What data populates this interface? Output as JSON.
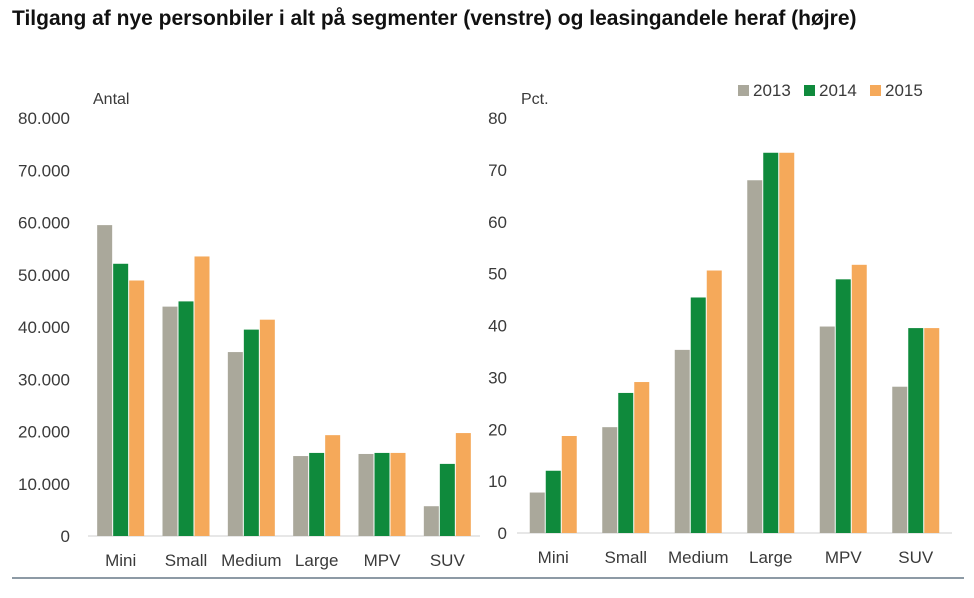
{
  "title": "Tilgang af nye personbiler i alt på segmenter (venstre) og leasingandele heraf (højre)",
  "chart_data": [
    {
      "type": "bar",
      "unit_label": "Antal",
      "categories": [
        "Mini",
        "Small",
        "Medium",
        "Large",
        "MPV",
        "SUV"
      ],
      "ylim": [
        0,
        80000
      ],
      "yticks": [
        "0",
        "10.000",
        "20.000",
        "30.000",
        "40.000",
        "50.000",
        "60.000",
        "70.000",
        "80.000"
      ],
      "grid": false,
      "series": [
        {
          "name": "2013",
          "color": "#aaa89b",
          "values": [
            59500,
            43900,
            35200,
            15300,
            15700,
            5700
          ]
        },
        {
          "name": "2014",
          "color": "#0f8a3c",
          "values": [
            52100,
            44900,
            39500,
            15900,
            15900,
            13800
          ]
        },
        {
          "name": "2015",
          "color": "#f5a95a",
          "values": [
            48900,
            53500,
            41400,
            19300,
            15900,
            19700
          ]
        }
      ]
    },
    {
      "type": "bar",
      "unit_label": "Pct.",
      "categories": [
        "Mini",
        "Small",
        "Medium",
        "Large",
        "MPV",
        "SUV"
      ],
      "ylim": [
        0,
        80
      ],
      "yticks": [
        "0",
        "10",
        "20",
        "30",
        "40",
        "50",
        "60",
        "70",
        "80"
      ],
      "grid": false,
      "legend": "top-right",
      "series": [
        {
          "name": "2013",
          "color": "#aaa89b",
          "values": [
            7.8,
            20.4,
            35.3,
            68.0,
            39.8,
            28.2
          ]
        },
        {
          "name": "2014",
          "color": "#0f8a3c",
          "values": [
            12.0,
            27.0,
            45.4,
            73.3,
            48.9,
            39.5
          ]
        },
        {
          "name": "2015",
          "color": "#f5a95a",
          "values": [
            18.7,
            29.1,
            50.6,
            73.3,
            51.7,
            39.5
          ]
        }
      ]
    }
  ]
}
